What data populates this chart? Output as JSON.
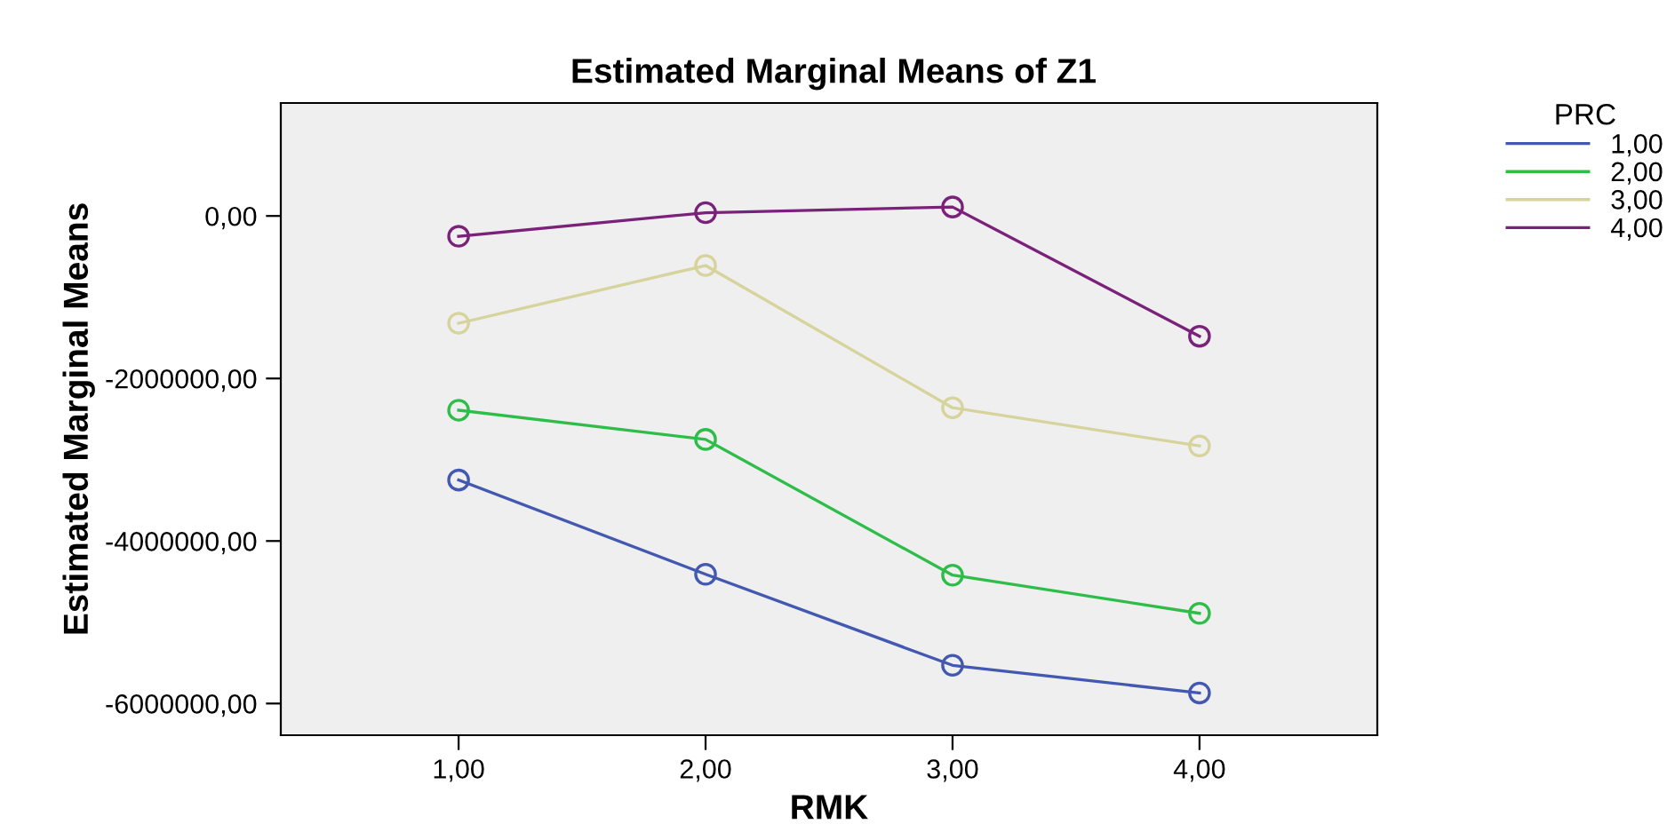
{
  "chart_data": {
    "type": "line",
    "title": "Estimated Marginal Means of Z1",
    "xlabel": "RMK",
    "ylabel": "Estimated Marginal Means",
    "legend_title": "PRC",
    "legend": "right",
    "marker": "circle",
    "line_style": "solid",
    "grid": false,
    "x": [
      1,
      2,
      3,
      4
    ],
    "xlim": [
      0.28,
      4.72
    ],
    "xticks": [
      {
        "value": 1,
        "label": "1,00"
      },
      {
        "value": 2,
        "label": "2,00"
      },
      {
        "value": 3,
        "label": "3,00"
      },
      {
        "value": 4,
        "label": "4,00"
      }
    ],
    "ylim": [
      -6390000,
      1390000
    ],
    "yticks": [
      {
        "value": -6000000,
        "label": "-6000000,00"
      },
      {
        "value": -4000000,
        "label": "-4000000,00"
      },
      {
        "value": -2000000,
        "label": "-2000000,00"
      },
      {
        "value": 0,
        "label": "0,00"
      }
    ],
    "series": [
      {
        "name": "1,00",
        "color": "#4358b0",
        "values": [
          -3250000,
          -4410000,
          -5530000,
          -5870000
        ]
      },
      {
        "name": "2,00",
        "color": "#2fbd4a",
        "values": [
          -2390000,
          -2750000,
          -4420000,
          -4890000
        ]
      },
      {
        "name": "3,00",
        "color": "#d6d39c",
        "values": [
          -1320000,
          -610000,
          -2360000,
          -2830000
        ]
      },
      {
        "name": "4,00",
        "color": "#7a227a",
        "values": [
          -250000,
          40000,
          110000,
          -1480000
        ]
      }
    ]
  }
}
